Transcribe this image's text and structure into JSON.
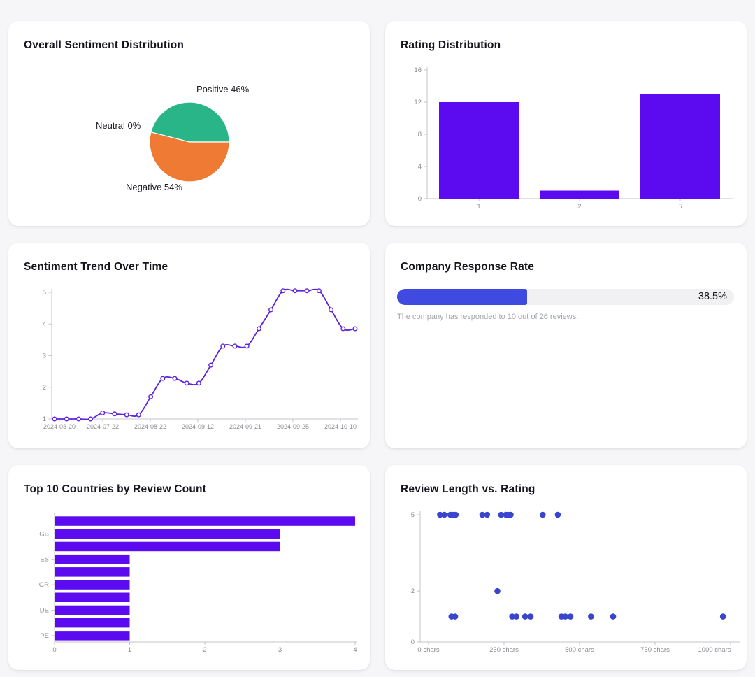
{
  "colors": {
    "page_bg": "#f6f6f8",
    "card_bg": "#ffffff",
    "title_text": "#15151e",
    "axis_line": "#c4c4ca",
    "tick_text": "#8b8b92",
    "accent_purple": "#5c0bf0",
    "line_purple": "#5e23d9",
    "pie_positive": "#29b588",
    "pie_neutral": "#9aa0a6",
    "pie_negative": "#ef7a33",
    "progress_fill": "#3f4be0",
    "progress_track": "#f1f1f4",
    "scatter_dot": "#3944cf",
    "caption_text": "#9fa3ab"
  },
  "chart_data": [
    {
      "id": "sentiment-pie",
      "type": "pie",
      "title": "Overall Sentiment Distribution",
      "categories": [
        "Positive",
        "Neutral",
        "Negative"
      ],
      "values": [
        46,
        0,
        54
      ],
      "labels": [
        "Positive 46%",
        "Neutral 0%",
        "Negative 54%"
      ],
      "slice_colors": [
        "#29b588",
        "#9aa0a6",
        "#ef7a33"
      ],
      "start_angle": 0,
      "counterclock": true
    },
    {
      "id": "rating-distribution",
      "type": "bar",
      "title": "Rating Distribution",
      "categories": [
        "1",
        "2",
        "5"
      ],
      "values": [
        12,
        1,
        13
      ],
      "yticks": [
        0,
        4,
        8,
        12,
        16
      ],
      "ylim": [
        0,
        16
      ],
      "color": "#5c0bf0"
    },
    {
      "id": "sentiment-trend",
      "type": "line",
      "title": "Sentiment Trend Over Time",
      "x_tick_labels": [
        "2024-03-20",
        "2024-07-22",
        "2024-08-22",
        "2024-09-12",
        "2024-09-21",
        "2024-09-25",
        "2024-10-10"
      ],
      "values": [
        1,
        1,
        1,
        1,
        1.19,
        1.16,
        1.13,
        1.13,
        1.7,
        2.28,
        2.28,
        2.13,
        2.13,
        2.7,
        3.3,
        3.3,
        3.3,
        3.85,
        4.45,
        5.05,
        5.05,
        5.05,
        5.05,
        4.45,
        3.85,
        3.85
      ],
      "yticks": [
        1,
        2,
        3,
        4,
        5
      ],
      "ylim": [
        1,
        5.1
      ],
      "color": "#5e23d9",
      "marker": "open-circle"
    },
    {
      "id": "response-rate",
      "type": "progress",
      "title": "Company Response Rate",
      "percent": 38.5,
      "label": "38.5%",
      "caption": "The company has responded to 10 out of 26 reviews.",
      "responded": 10,
      "total_reviews": 26,
      "color": "#3f4be0",
      "track_color": "#f1f1f4"
    },
    {
      "id": "top-countries",
      "type": "hbar",
      "title": "Top 10 Countries by Review Count",
      "values": [
        4,
        3,
        3,
        1,
        1,
        1,
        1,
        1,
        1,
        1
      ],
      "ytick_labels": [
        "",
        "GB",
        "",
        "ES",
        "",
        "GR",
        "",
        "DE",
        "",
        "PE"
      ],
      "xticks": [
        0,
        1,
        2,
        3,
        4
      ],
      "xlim": [
        0,
        4
      ],
      "color": "#5c0bf0"
    },
    {
      "id": "length-vs-rating",
      "type": "scatter",
      "title": "Review Length vs. Rating",
      "xlabel_unit": "chars",
      "yticks": [
        0,
        2,
        5
      ],
      "xticks": [
        0,
        250,
        500,
        750,
        1000
      ],
      "xtick_labels": [
        "0 chars",
        "250 chars",
        "500 chars",
        "750 chars",
        "1000 chars"
      ],
      "ylim": [
        0,
        5.2
      ],
      "xlim": [
        0,
        1030
      ],
      "color": "#3944cf",
      "points": [
        {
          "x": 38,
          "y": 5
        },
        {
          "x": 52,
          "y": 5
        },
        {
          "x": 72,
          "y": 5
        },
        {
          "x": 80,
          "y": 5
        },
        {
          "x": 90,
          "y": 5
        },
        {
          "x": 178,
          "y": 5
        },
        {
          "x": 194,
          "y": 5
        },
        {
          "x": 240,
          "y": 5
        },
        {
          "x": 256,
          "y": 5
        },
        {
          "x": 264,
          "y": 5
        },
        {
          "x": 272,
          "y": 5
        },
        {
          "x": 378,
          "y": 5
        },
        {
          "x": 428,
          "y": 5
        },
        {
          "x": 228,
          "y": 2
        },
        {
          "x": 76,
          "y": 1
        },
        {
          "x": 88,
          "y": 1
        },
        {
          "x": 277,
          "y": 1
        },
        {
          "x": 291,
          "y": 1
        },
        {
          "x": 320,
          "y": 1
        },
        {
          "x": 338,
          "y": 1
        },
        {
          "x": 440,
          "y": 1
        },
        {
          "x": 453,
          "y": 1
        },
        {
          "x": 470,
          "y": 1
        },
        {
          "x": 538,
          "y": 1
        },
        {
          "x": 611,
          "y": 1
        },
        {
          "x": 975,
          "y": 1
        }
      ]
    }
  ]
}
